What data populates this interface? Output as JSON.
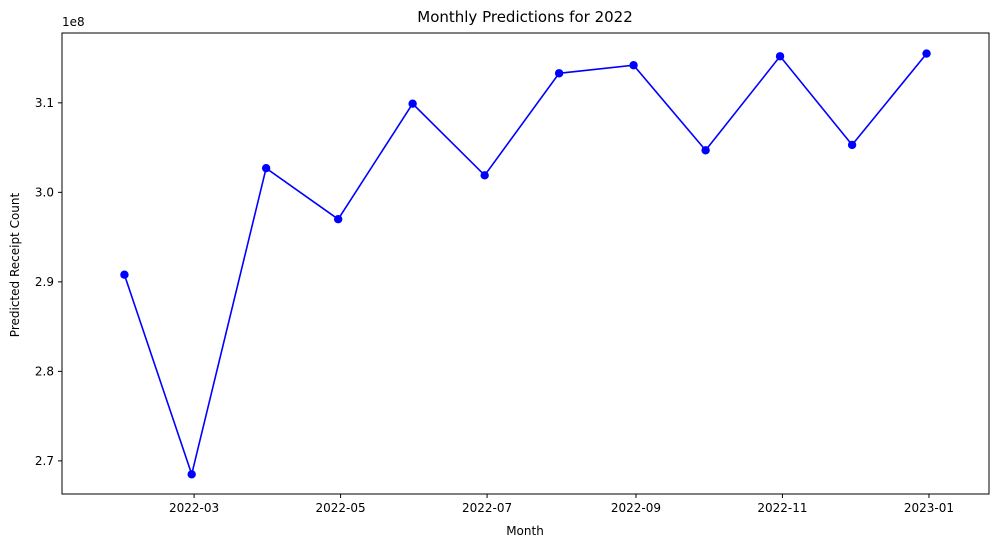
{
  "chart_data": {
    "type": "line",
    "title": "Monthly Predictions for 2022",
    "xlabel": "Month",
    "ylabel": "Predicted Receipt Count",
    "y_offset_label": "1e8",
    "y_scale": 100000000,
    "grid": false,
    "xlim": [
      "2022-01-05",
      "2023-01-26"
    ],
    "ylim": [
      266300000,
      317800000
    ],
    "x_ticks": [
      {
        "date": "2022-03-01",
        "label": "2022-03"
      },
      {
        "date": "2022-05-01",
        "label": "2022-05"
      },
      {
        "date": "2022-07-01",
        "label": "2022-07"
      },
      {
        "date": "2022-09-01",
        "label": "2022-09"
      },
      {
        "date": "2022-11-01",
        "label": "2022-11"
      },
      {
        "date": "2023-01-01",
        "label": "2023-01"
      }
    ],
    "y_ticks": [
      {
        "value": 270000000,
        "label": "2.7"
      },
      {
        "value": 280000000,
        "label": "2.8"
      },
      {
        "value": 290000000,
        "label": "2.9"
      },
      {
        "value": 300000000,
        "label": "3.0"
      },
      {
        "value": 310000000,
        "label": "3.1"
      }
    ],
    "series": [
      {
        "color": "#0000ff",
        "marker": "circle",
        "x": [
          "2022-01-31",
          "2022-02-28",
          "2022-03-31",
          "2022-04-30",
          "2022-05-31",
          "2022-06-30",
          "2022-07-31",
          "2022-08-31",
          "2022-09-30",
          "2022-10-31",
          "2022-11-30",
          "2022-12-31"
        ],
        "values": [
          290800000,
          268500000,
          302700000,
          297000000,
          309900000,
          301900000,
          313300000,
          314200000,
          304700000,
          315200000,
          305300000,
          315500000
        ]
      }
    ]
  }
}
